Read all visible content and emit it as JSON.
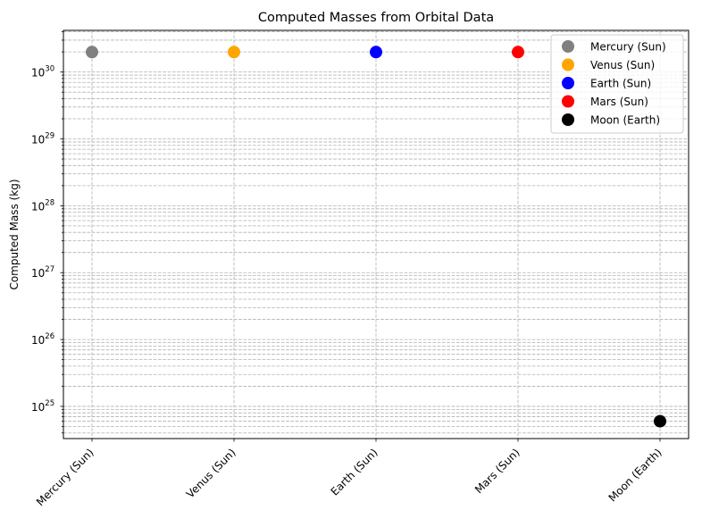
{
  "chart_data": {
    "type": "scatter",
    "title": "Computed Masses from Orbital Data",
    "xlabel": "",
    "ylabel": "Computed Mass (kg)",
    "yscale": "log",
    "ylim": [
      3.3e+24,
      4.2e+30
    ],
    "grid": true,
    "legend_position": "top-right",
    "categories": [
      "Mercury (Sun)",
      "Venus (Sun)",
      "Earth (Sun)",
      "Mars (Sun)",
      "Moon (Earth)"
    ],
    "series": [
      {
        "name": "Mercury (Sun)",
        "x": "Mercury (Sun)",
        "y": 1.99e+30,
        "color": "#808080"
      },
      {
        "name": "Venus (Sun)",
        "x": "Venus (Sun)",
        "y": 1.99e+30,
        "color": "#ffa500"
      },
      {
        "name": "Earth (Sun)",
        "x": "Earth (Sun)",
        "y": 1.99e+30,
        "color": "#0000ff"
      },
      {
        "name": "Mars (Sun)",
        "x": "Mars (Sun)",
        "y": 1.99e+30,
        "color": "#ff0000"
      },
      {
        "name": "Moon (Earth)",
        "x": "Moon (Earth)",
        "y": 6e+24,
        "color": "#000000"
      }
    ],
    "y_ticks": [
      {
        "exp": 25,
        "label": "10",
        "sup": "25"
      },
      {
        "exp": 26,
        "label": "10",
        "sup": "26"
      },
      {
        "exp": 27,
        "label": "10",
        "sup": "27"
      },
      {
        "exp": 28,
        "label": "10",
        "sup": "28"
      },
      {
        "exp": 29,
        "label": "10",
        "sup": "29"
      },
      {
        "exp": 30,
        "label": "10",
        "sup": "30"
      }
    ]
  }
}
